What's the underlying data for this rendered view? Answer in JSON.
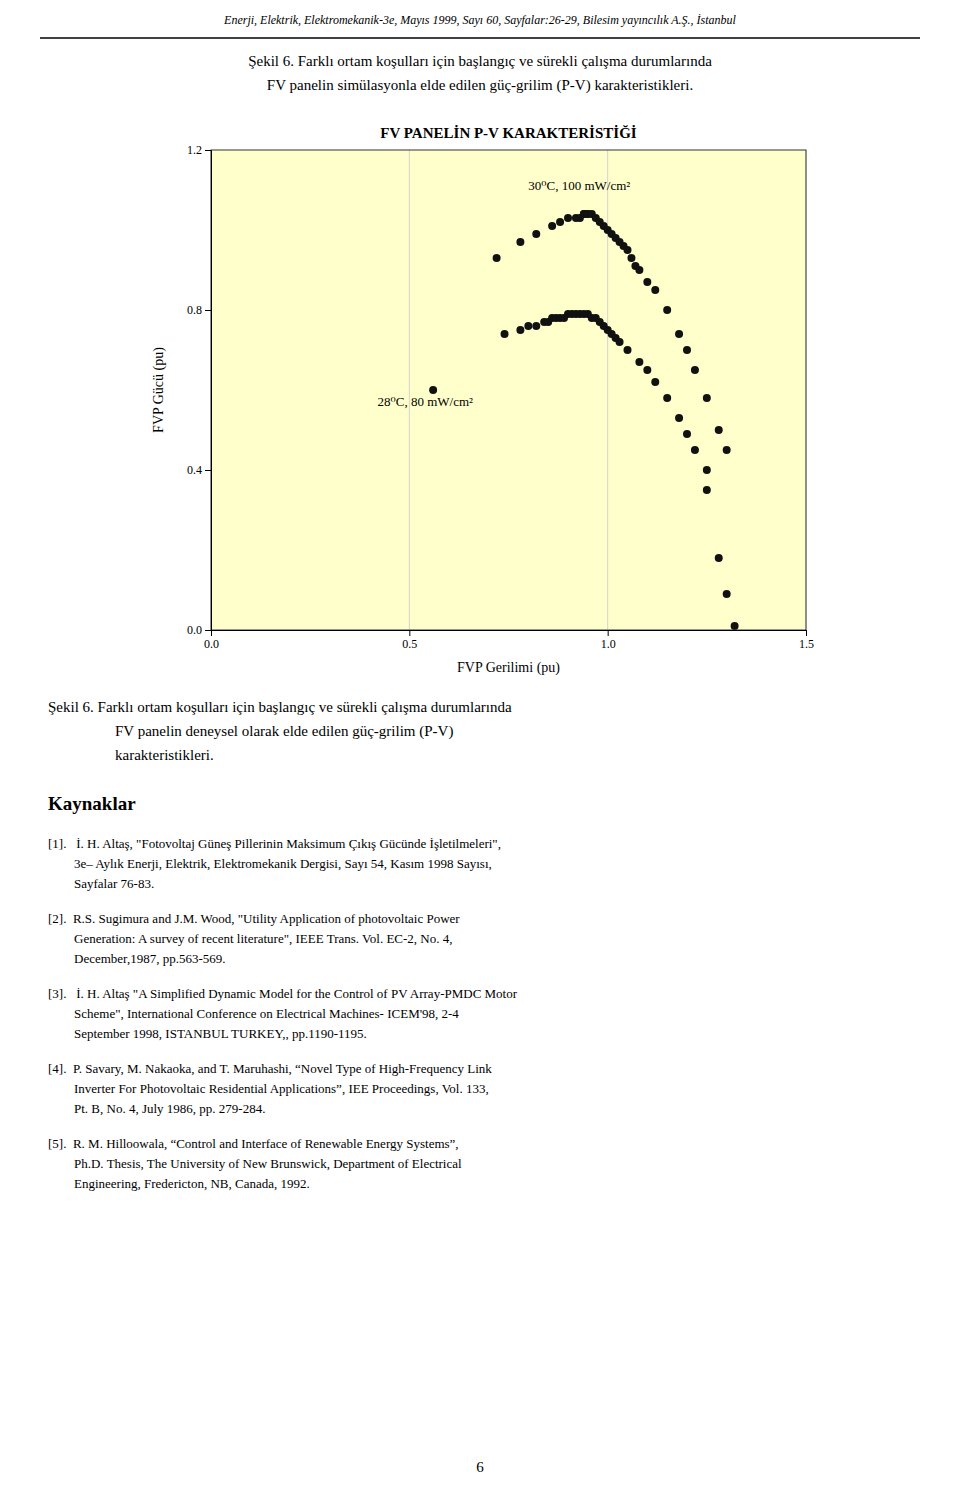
{
  "page": {
    "header": "Enerji, Elektrik, Elektromekanik-3e, Mayıs 1999, Sayı 60, Sayfalar:26-29, Bilesim yayıncılık A.Ş., İstanbul",
    "captions_top": [
      "Şekil 6.  Farklı ortam koşulları için başlangıç ve sürekli çalışma durumlarında",
      "FV panelin simülasyonla elde edilen güç-grilim (P-V) karakteristikleri."
    ],
    "captions_bottom": [
      "Şekil 6.  Farklı ortam koşulları için başlangıç ve sürekli çalışma durumlarında",
      "FV panelin deneysel olarak elde edilen güç-grilim (P-V)",
      "karakteristikleri."
    ],
    "references_title": "Kaynaklar",
    "references": [
      "[1].   İ. H. Altaş, \"Fotovoltaj Güneş Pillerinin Maksimum Çıkış Gücünde İşletilmeleri\",\n        3e– Aylık Enerji, Elektrik, Elektromekanik Dergisi, Sayı 54, Kasım 1998 Sayısı,\n        Sayfalar 76-83.",
      "[2].  R.S. Sugimura and J.M. Wood, \"Utility Application of photovoltaic Power\n        Generation: A survey of recent literature\", IEEE Trans. Vol. EC-2, No. 4,\n        December,1987, pp.563-569.",
      "[3].   İ. H. Altaş \"A Simplified Dynamic Model for the Control of PV Array-PMDC Motor\n        Scheme\", International Conference on Electrical Machines- ICEM'98, 2-4\n        September 1998, ISTANBUL TURKEY,, pp.1190-1195.",
      "[4].  P. Savary, M. Nakaoka, and T. Maruhashi, “Novel Type of High-Frequency Link\n        Inverter For Photovoltaic Residential Applications”, IEE Proceedings, Vol. 133,\n        Pt. B, No. 4, July 1986, pp. 279-284.",
      "[5].  R. M. Hilloowala, “Control and Interface of Renewable Energy Systems”,\n        Ph.D. Thesis, The University of New Brunswick, Department of Electrical\n        Engineering, Fredericton, NB, Canada, 1992."
    ],
    "page_number": "6"
  },
  "chart_data": {
    "type": "scatter",
    "title": "FV PANELİN P-V KARAKTERİSTİĞİ",
    "xlabel": "FVP Gerilimi (pu)",
    "ylabel": "FVP Gücü (pu)",
    "xlim": [
      0,
      1.5
    ],
    "ylim": [
      0,
      1.2
    ],
    "xticks": [
      {
        "value": 0,
        "label": "0.0"
      },
      0.5,
      {
        "value": 1,
        "label": "1.0"
      },
      1.5
    ],
    "yticks": [
      {
        "value": 0,
        "label": "0.0"
      },
      0.4,
      0.8,
      1.2
    ],
    "grid": "x",
    "series": [
      {
        "color": "#111111",
        "x": [
          0.72,
          0.78,
          0.82,
          0.86,
          0.88,
          0.9,
          0.92,
          0.93,
          0.94,
          0.94,
          0.95,
          0.95,
          0.96,
          0.97,
          0.98,
          0.99,
          1.0,
          1.01,
          1.02,
          1.03,
          1.04,
          1.05,
          1.06,
          1.07,
          1.08,
          1.1,
          1.12,
          1.15,
          1.18,
          1.2,
          1.22,
          1.25,
          1.28,
          1.3
        ],
        "values": [
          0.93,
          0.97,
          0.99,
          1.01,
          1.02,
          1.03,
          1.03,
          1.03,
          1.04,
          1.04,
          1.04,
          1.04,
          1.04,
          1.03,
          1.02,
          1.01,
          1.0,
          0.99,
          0.98,
          0.97,
          0.96,
          0.95,
          0.93,
          0.91,
          0.9,
          0.87,
          0.85,
          0.8,
          0.74,
          0.7,
          0.65,
          0.58,
          0.5,
          0.45
        ]
      },
      {
        "color": "#111111",
        "x": [
          0.56,
          0.74,
          0.78,
          0.8,
          0.82,
          0.84,
          0.85,
          0.86,
          0.87,
          0.88,
          0.89,
          0.9,
          0.91,
          0.92,
          0.93,
          0.94,
          0.95,
          0.96,
          0.97,
          0.98,
          0.99,
          1.0,
          1.01,
          1.02,
          1.03,
          1.05,
          1.08,
          1.1,
          1.12,
          1.15,
          1.18,
          1.2,
          1.22,
          1.25
        ],
        "values": [
          0.6,
          0.74,
          0.75,
          0.76,
          0.76,
          0.77,
          0.77,
          0.78,
          0.78,
          0.78,
          0.78,
          0.79,
          0.79,
          0.79,
          0.79,
          0.79,
          0.79,
          0.78,
          0.78,
          0.77,
          0.76,
          0.75,
          0.74,
          0.73,
          0.72,
          0.7,
          0.67,
          0.65,
          0.62,
          0.58,
          0.53,
          0.49,
          0.45,
          0.4
        ]
      },
      {
        "color": "#111111",
        "x": [
          1.25,
          1.28,
          1.3,
          1.32
        ],
        "values": [
          0.35,
          0.18,
          0.09,
          0.01
        ]
      }
    ],
    "annotations": [
      {
        "text": "30⁰C, 100 mW/cm²",
        "x": 0.8,
        "y": 1.1
      },
      {
        "text": "28⁰C, 80 mW/cm²",
        "x": 0.42,
        "y": 0.56
      }
    ]
  }
}
